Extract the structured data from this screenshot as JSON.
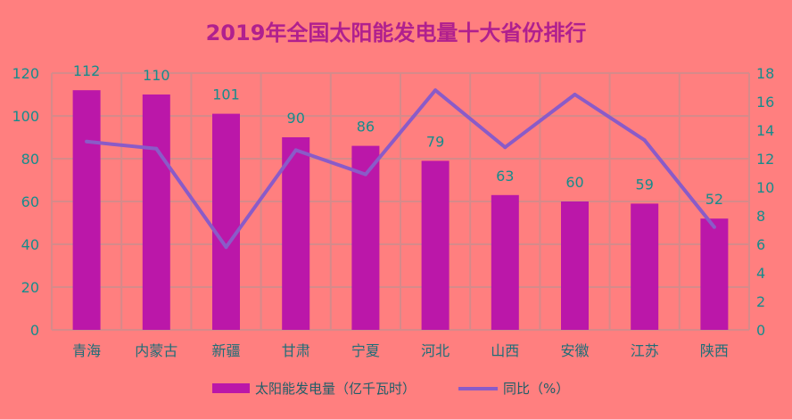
{
  "chart_data": {
    "type": "bar",
    "title": "2019年全国太阳能发电量十大省份排行",
    "categories": [
      "青海",
      "内蒙古",
      "新疆",
      "甘肃",
      "宁夏",
      "河北",
      "山西",
      "安徽",
      "江苏",
      "陕西"
    ],
    "series": [
      {
        "name": "太阳能发电量（亿千瓦时）",
        "type": "bar",
        "axis": "left",
        "values": [
          112,
          110,
          101,
          90,
          86,
          79,
          63,
          60,
          59,
          52
        ]
      },
      {
        "name": "同比（%）",
        "type": "line",
        "axis": "right",
        "values": [
          13.2,
          12.7,
          5.8,
          12.6,
          10.9,
          16.8,
          12.8,
          16.5,
          13.3,
          7.2
        ]
      }
    ],
    "ylim": [
      0,
      120
    ],
    "yticks": [
      0,
      20,
      40,
      60,
      80,
      100,
      120
    ],
    "y2lim": [
      0,
      18
    ],
    "y2ticks": [
      0,
      2,
      4,
      6,
      8,
      10,
      12,
      14,
      16,
      18
    ],
    "grid": true,
    "legend": "bottom",
    "colors": {
      "background": "#FF7F7F",
      "bar": "#BB17A9",
      "line": "#8A5BC8",
      "label": "#168C8C",
      "title": "#B0208E",
      "grid": "#D68A8A"
    }
  }
}
